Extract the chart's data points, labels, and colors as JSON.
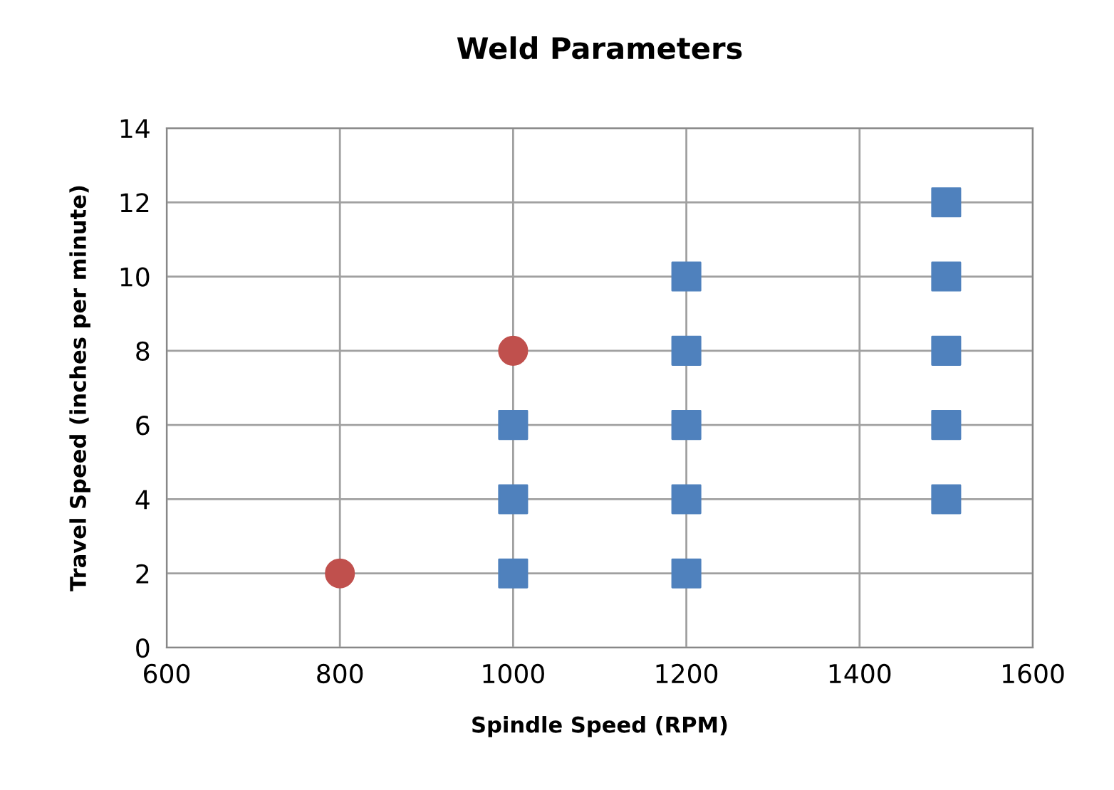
{
  "chart_data": {
    "type": "scatter",
    "title": "Weld Parameters",
    "xlabel": "Spindle Speed (RPM)",
    "ylabel": "Travel Speed (inches per minute)",
    "series": [
      {
        "color": "#4f81bd",
        "marker": "square",
        "x": [
          1000,
          1000,
          1000,
          1200,
          1200,
          1200,
          1200,
          1200,
          1500,
          1500,
          1500,
          1500,
          1500
        ],
        "values": [
          2,
          4,
          6,
          2,
          4,
          6,
          8,
          10,
          4,
          6,
          8,
          10,
          12
        ]
      },
      {
        "color": "#c0504d",
        "marker": "circle",
        "x": [
          800,
          1000
        ],
        "values": [
          2,
          8
        ]
      }
    ],
    "xlim": [
      600,
      1600
    ],
    "xticks": [
      600,
      800,
      1000,
      1200,
      1400,
      1600
    ],
    "ylim": [
      0,
      14
    ],
    "yticks": [
      0,
      2,
      4,
      6,
      8,
      10,
      12,
      14
    ],
    "grid": true,
    "legend": false
  }
}
